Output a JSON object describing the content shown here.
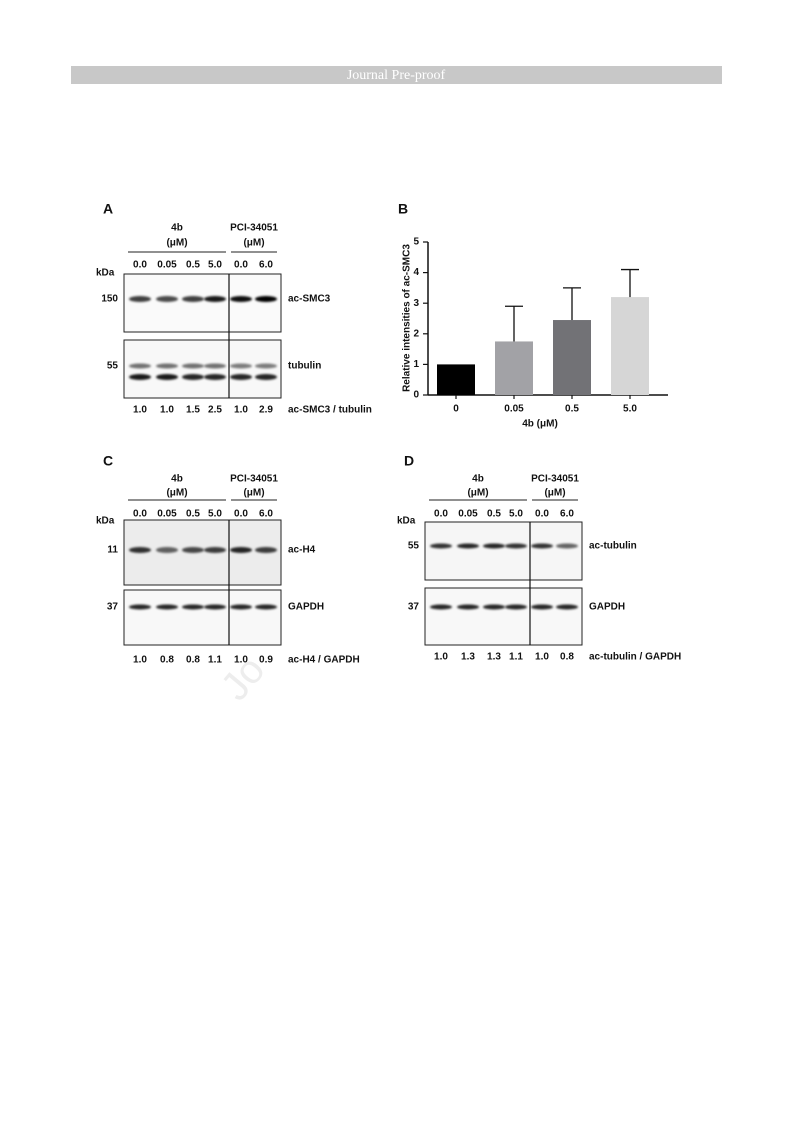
{
  "header": {
    "title": "Journal Pre-proof"
  },
  "watermark": "Jo",
  "blots": [
    {
      "label": "A",
      "groups": [
        {
          "name": "4b",
          "unit": "(μM)"
        },
        {
          "name": "PCI-34051",
          "unit": "(μM)"
        }
      ],
      "concentrations": [
        "0.0",
        "0.05",
        "0.5",
        "5.0",
        "0.0",
        "6.0"
      ],
      "kda_label": "kDa",
      "rows": [
        {
          "kda": "150",
          "name": "ac-SMC3"
        },
        {
          "kda": "55",
          "name": "tubulin"
        }
      ],
      "ratios": [
        "1.0",
        "1.0",
        "1.5",
        "2.5",
        "1.0",
        "2.9"
      ],
      "ratio_label": "ac-SMC3 / tubulin"
    },
    {
      "label": "C",
      "groups": [
        {
          "name": "4b",
          "unit": "(μM)"
        },
        {
          "name": "PCI-34051",
          "unit": "(μM)"
        }
      ],
      "concentrations": [
        "0.0",
        "0.05",
        "0.5",
        "5.0",
        "0.0",
        "6.0"
      ],
      "kda_label": "kDa",
      "rows": [
        {
          "kda": "11",
          "name": "ac-H4"
        },
        {
          "kda": "37",
          "name": "GAPDH"
        }
      ],
      "ratios": [
        "1.0",
        "0.8",
        "0.8",
        "1.1",
        "1.0",
        "0.9"
      ],
      "ratio_label": "ac-H4 / GAPDH"
    },
    {
      "label": "D",
      "groups": [
        {
          "name": "4b",
          "unit": "(μM)"
        },
        {
          "name": "PCI-34051",
          "unit": "(μM)"
        }
      ],
      "concentrations": [
        "0.0",
        "0.05",
        "0.5",
        "5.0",
        "0.0",
        "6.0"
      ],
      "kda_label": "kDa",
      "rows": [
        {
          "kda": "55",
          "name": "ac-tubulin"
        },
        {
          "kda": "37",
          "name": "GAPDH"
        }
      ],
      "ratios": [
        "1.0",
        "1.3",
        "1.3",
        "1.1",
        "1.0",
        "0.8"
      ],
      "ratio_label": "ac-tubulin / GAPDH"
    }
  ],
  "chart_data": {
    "type": "bar",
    "panel_label": "B",
    "y_label": "Relative intensities of ac-SMC3",
    "x_label": "4b (μM)",
    "categories": [
      "0",
      "0.05",
      "0.5",
      "5.0"
    ],
    "values": [
      1.0,
      1.75,
      2.45,
      3.2
    ],
    "errors": [
      null,
      1.15,
      1.05,
      0.9
    ],
    "colors": [
      "#000000",
      "#a2a2a6",
      "#727276",
      "#d6d6d6"
    ],
    "ylim": [
      0,
      5
    ],
    "yticks": [
      0,
      1,
      2,
      3,
      4,
      5
    ]
  }
}
